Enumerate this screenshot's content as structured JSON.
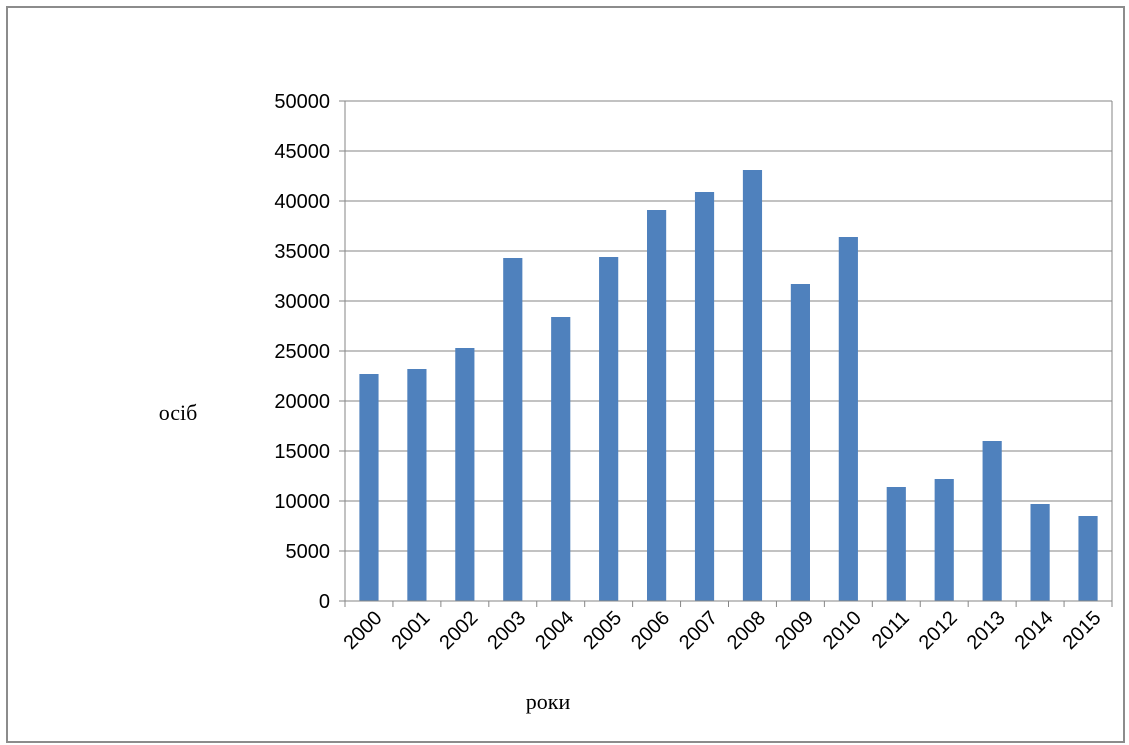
{
  "chart_data": {
    "type": "bar",
    "title": "",
    "xlabel": "роки",
    "ylabel": "осіб",
    "categories": [
      "2000",
      "2001",
      "2002",
      "2003",
      "2004",
      "2005",
      "2006",
      "2007",
      "2008",
      "2009",
      "2010",
      "2011",
      "2012",
      "2013",
      "2014",
      "2015"
    ],
    "values": [
      22700,
      23200,
      25300,
      34300,
      28400,
      34400,
      39100,
      40900,
      43100,
      31700,
      36400,
      11400,
      12200,
      16000,
      9700,
      8500
    ],
    "ylim": [
      0,
      50000
    ],
    "yticks": [
      "0",
      "5000",
      "10000",
      "15000",
      "20000",
      "25000",
      "30000",
      "35000",
      "40000",
      "45000",
      "50000"
    ],
    "grid": true,
    "legend": "none",
    "colors": {
      "bar": "#4f81bd",
      "grid": "#868686",
      "frame": "#8c8c8c"
    }
  }
}
